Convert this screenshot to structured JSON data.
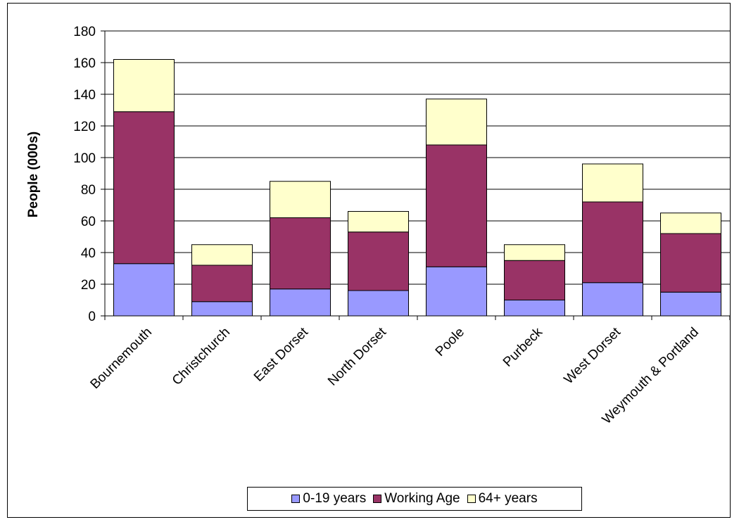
{
  "chart_data": {
    "type": "bar",
    "stacked": true,
    "title": "",
    "xlabel": "",
    "ylabel": "People (000s)",
    "ylim": [
      0,
      180
    ],
    "yticks": [
      0,
      20,
      40,
      60,
      80,
      100,
      120,
      140,
      160,
      180
    ],
    "grid": true,
    "legend_position": "bottom",
    "categories": [
      "Bournemouth",
      "Christchurch",
      "East Dorset",
      "North Dorset",
      "Poole",
      "Purbeck",
      "West Dorset",
      "Weymouth & Portland"
    ],
    "series": [
      {
        "name": "0-19 years",
        "color": "#9999FF",
        "values": [
          33,
          9,
          17,
          16,
          31,
          10,
          21,
          15
        ]
      },
      {
        "name": "Working Age",
        "color": "#993366",
        "values": [
          96,
          23,
          45,
          37,
          77,
          25,
          51,
          37
        ]
      },
      {
        "name": "64+ years",
        "color": "#FFFFCC",
        "values": [
          33,
          13,
          23,
          13,
          29,
          10,
          24,
          13
        ]
      }
    ]
  }
}
